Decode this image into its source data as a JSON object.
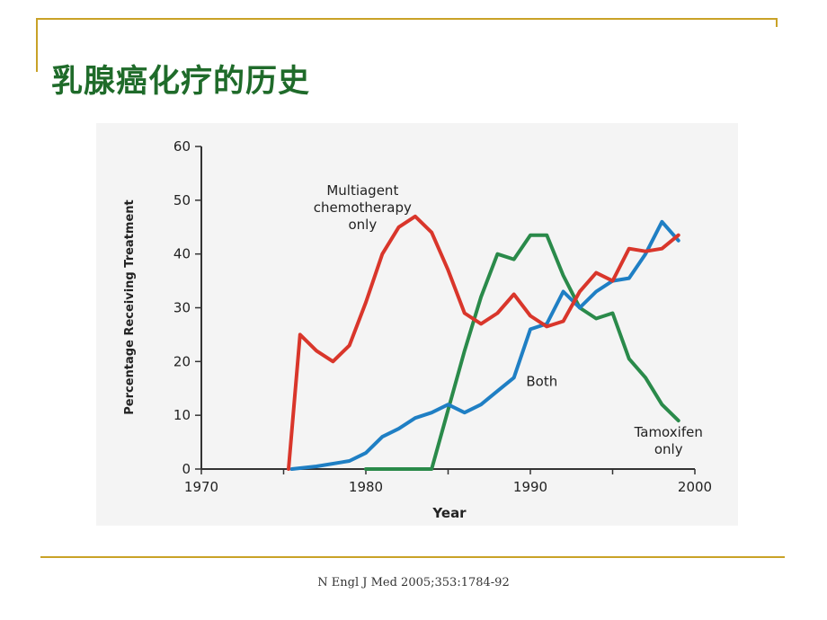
{
  "slide": {
    "title": "乳腺癌化疗的历史",
    "citation": "N Engl J Med 2005;353:1784-92"
  },
  "colors": {
    "title": "#1f6b2a",
    "rule": "#c9a227",
    "multiagent": "#d9362b",
    "both": "#1f7fc4",
    "tamoxifen": "#2a8a4a"
  },
  "chart_data": {
    "type": "line",
    "title": "",
    "xlabel": "Year",
    "ylabel": "Percentage Receiving Treatment",
    "xlim": [
      1970,
      2000
    ],
    "ylim": [
      0,
      60
    ],
    "xticks": [
      1970,
      1980,
      1990,
      2000
    ],
    "yticks": [
      0,
      10,
      20,
      30,
      40,
      50,
      60
    ],
    "grid": false,
    "series": [
      {
        "name": "Multiagent chemotherapy only",
        "color": "#d9362b",
        "x": [
          1975.3,
          1976,
          1977,
          1978,
          1979,
          1980,
          1981,
          1982,
          1983,
          1984,
          1985,
          1986,
          1987,
          1988,
          1989,
          1990,
          1991,
          1992,
          1993,
          1994,
          1995,
          1996,
          1997,
          1998,
          1999
        ],
        "y": [
          0,
          25,
          22,
          20,
          23,
          31,
          40,
          45,
          47,
          44,
          37,
          29,
          27,
          29,
          32.5,
          28.5,
          26.5,
          27.5,
          33,
          36.5,
          35,
          41,
          40.5,
          41,
          43.5
        ]
      },
      {
        "name": "Both",
        "color": "#1f7fc4",
        "x": [
          1975.5,
          1977,
          1979,
          1980,
          1981,
          1982,
          1983,
          1984,
          1985,
          1986,
          1987,
          1988,
          1989,
          1990,
          1991,
          1992,
          1993,
          1994,
          1995,
          1996,
          1997,
          1998,
          1999
        ],
        "y": [
          0,
          0.5,
          1.5,
          3,
          6,
          7.5,
          9.5,
          10.5,
          12,
          10.5,
          12,
          14.5,
          17,
          26,
          27,
          33,
          30,
          33,
          35,
          35.5,
          40,
          46,
          42.5
        ]
      },
      {
        "name": "Tamoxifen only",
        "color": "#2a8a4a",
        "x": [
          1980,
          1984,
          1985,
          1986,
          1987,
          1988,
          1989,
          1990,
          1991,
          1992,
          1993,
          1994,
          1995,
          1996,
          1997,
          1998,
          1999
        ],
        "y": [
          0,
          0,
          11,
          22,
          32,
          40,
          39,
          43.5,
          43.5,
          36,
          30,
          28,
          29,
          20.5,
          17,
          12,
          9
        ]
      }
    ],
    "annotations": [
      {
        "series": "Multiagent chemotherapy only",
        "lines": [
          "Multiagent",
          "chemotherapy",
          "only"
        ],
        "x": 1979.8,
        "y": 51
      },
      {
        "series": "Both",
        "lines": [
          "Both"
        ],
        "x": 1990.7,
        "y": 15.5
      },
      {
        "series": "Tamoxifen only",
        "lines": [
          "Tamoxifen",
          "only"
        ],
        "x": 1998.4,
        "y": 6
      }
    ]
  }
}
